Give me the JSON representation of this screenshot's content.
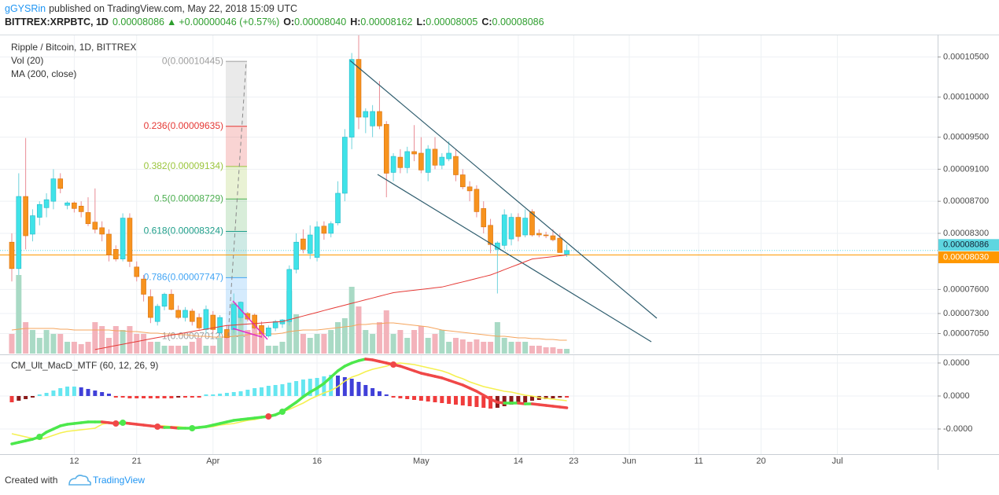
{
  "header": {
    "author": "gGYSRin",
    "published": "published on TradingView.com, May 22, 2018 15:09 UTC",
    "symbol": "BITTREX:XRPBTC, 1D",
    "last": "0.00008086",
    "arrow": "▲",
    "change": "+0.00000046 (+0.57%)",
    "ohlc": [
      {
        "key": "O:",
        "value": "0.00008040"
      },
      {
        "key": "H:",
        "value": "0.00008162"
      },
      {
        "key": "L:",
        "value": "0.00008005"
      },
      {
        "key": "C:",
        "value": "0.00008086"
      }
    ]
  },
  "footer": {
    "created": "Created with",
    "brand": "TradingView"
  },
  "chart_data": {
    "type": "candlestick",
    "xlim": [
      -1.7,
      133.45
    ],
    "xticks": [
      {
        "value": 9,
        "label": "12"
      },
      {
        "value": 18,
        "label": "21"
      },
      {
        "value": 29,
        "label": "Apr"
      },
      {
        "value": 44,
        "label": "16"
      },
      {
        "value": 59,
        "label": "May"
      },
      {
        "value": 73,
        "label": "14"
      },
      {
        "value": 81,
        "label": "23"
      },
      {
        "value": 89,
        "label": "Jun"
      },
      {
        "value": 99,
        "label": "11"
      },
      {
        "value": 108,
        "label": "20"
      },
      {
        "value": 119,
        "label": "Jul"
      }
    ],
    "ylim": [
      6.8e-05,
      0.0001077
    ],
    "yticks": [
      {
        "value": 0.000105,
        "label": "0.00010500"
      },
      {
        "value": 0.0001,
        "label": "0.00010000"
      },
      {
        "value": 9.5e-05,
        "label": "0.00009500"
      },
      {
        "value": 9.1e-05,
        "label": "0.00009100"
      },
      {
        "value": 8.7e-05,
        "label": "0.00008700"
      },
      {
        "value": 8.3e-05,
        "label": "0.00008300"
      },
      {
        "value": 7.6e-05,
        "label": "0.00007600"
      },
      {
        "value": 7.3e-05,
        "label": "0.00007300"
      },
      {
        "value": 7.05e-05,
        "label": "0.00007050"
      }
    ],
    "grid": true,
    "ohlc": {
      "name": "Ripple / Bitcoin, 1D, BITTREX",
      "up_color": "#3fe3e8",
      "down_color": "#f7931e",
      "open": [
        8.19e-05,
        7.86e-05,
        8.76e-05,
        8.29e-05,
        8.5e-05,
        8.62e-05,
        8.7e-05,
        8.98e-05,
        8.65e-05,
        8.68e-05,
        8.64e-05,
        8.56e-05,
        8.44e-05,
        8.37e-05,
        8.29e-05,
        8.1e-05,
        7.98e-05,
        8.49e-05,
        7.88e-05,
        7.73e-05,
        7.51e-05,
        7.2e-05,
        7.39e-05,
        7.54e-05,
        7.34e-05,
        7.25e-05,
        7.33e-05,
        7.25e-05,
        7.1e-05,
        7.28e-05,
        7.06e-05,
        7.1e-05,
        7.1e-05,
        7.25e-05,
        7.3e-05,
        7.28e-05,
        7.15e-05,
        7.02e-05,
        7.12e-05,
        7.17e-05,
        7.2e-05,
        7.85e-05,
        8.23e-05,
        8.05e-05,
        8e-05,
        8.39e-05,
        8.3e-05,
        8.43e-05,
        8.8e-05,
        9.5e-05,
        0.0001047,
        9.75e-05,
        9.64e-05,
        9.82e-05,
        9.66e-05,
        9.06e-05,
        9.25e-05,
        9.12e-05,
        9.32e-05,
        9.3e-05,
        9.06e-05,
        9.35e-05,
        9.15e-05,
        9.23e-05,
        9.26e-05,
        9.03e-05,
        8.88e-05,
        8.85e-05,
        8.61e-05,
        8.4e-05,
        8.1e-05,
        8.15e-05,
        8.23e-05,
        8.5e-05,
        8.28e-05,
        8.57e-05,
        8.3e-05,
        8.28e-05,
        8.27e-05,
        8.24e-05,
        8.04e-05
      ],
      "high": [
        8.3e-05,
        9.05e-05,
        9.49e-05,
        8.6e-05,
        8.7e-05,
        8.8e-05,
        9.1e-05,
        9.05e-05,
        8.7e-05,
        8.7e-05,
        8.7e-05,
        8.75e-05,
        8.86e-05,
        8.45e-05,
        8.35e-05,
        8.15e-05,
        8.55e-05,
        8.55e-05,
        7.95e-05,
        7.78e-05,
        7.6e-05,
        7.42e-05,
        7.56e-05,
        7.6e-05,
        7.4e-05,
        7.38e-05,
        7.36e-05,
        7.3e-05,
        7.4e-05,
        7.33e-05,
        7.28e-05,
        7.15e-05,
        7.55e-05,
        7.45e-05,
        7.32e-05,
        7.3e-05,
        7.2e-05,
        7.15e-05,
        7.22e-05,
        7.23e-05,
        7.9e-05,
        8.3e-05,
        8.35e-05,
        8.4e-05,
        8.45e-05,
        8.45e-05,
        8.45e-05,
        8.95e-05,
        9.6e-05,
        0.0001055,
        0.0001077,
        9.86e-05,
        9.9e-05,
        0.000102,
        9.7e-05,
        9.3e-05,
        9.35e-05,
        9.38e-05,
        9.65e-05,
        9.5e-05,
        9.4e-05,
        9.5e-05,
        9.3e-05,
        9.45e-05,
        9.35e-05,
        9.1e-05,
        8.95e-05,
        8.9e-05,
        8.7e-05,
        8.48e-05,
        8.2e-05,
        8.6e-05,
        8.55e-05,
        8.55e-05,
        8.6e-05,
        8.6e-05,
        8.35e-05,
        8.32e-05,
        8.35e-05,
        8.3e-05,
        8.162e-05
      ],
      "low": [
        7.7e-05,
        7.78e-05,
        8.1e-05,
        8.2e-05,
        8.4e-05,
        8.5e-05,
        8.6e-05,
        8.8e-05,
        8.6e-05,
        8.56e-05,
        8.5e-05,
        8.39e-05,
        8.3e-05,
        8.2e-05,
        7.95e-05,
        7.95e-05,
        7.95e-05,
        7.88e-05,
        7.7e-05,
        7.45e-05,
        7.18e-05,
        7.15e-05,
        7.34e-05,
        7.34e-05,
        7.23e-05,
        7.2e-05,
        7.15e-05,
        7.1e-05,
        7.05e-05,
        7.05e-05,
        7e-05,
        6.98e-05,
        7.05e-05,
        7.2e-05,
        7.2e-05,
        7.1e-05,
        7e-05,
        7e-05,
        7.08e-05,
        7.12e-05,
        7.15e-05,
        7.8e-05,
        8.05e-05,
        7.98e-05,
        7.95e-05,
        8.22e-05,
        8.25e-05,
        8.4e-05,
        8.7e-05,
        9.35e-05,
        9.6e-05,
        9.55e-05,
        9.5e-05,
        9.6e-05,
        8.75e-05,
        8.95e-05,
        9.05e-05,
        9.05e-05,
        9.2e-05,
        9.05e-05,
        8.95e-05,
        9.1e-05,
        9.1e-05,
        9.2e-05,
        8.95e-05,
        8.85e-05,
        8.7e-05,
        8.5e-05,
        8.3e-05,
        8.05e-05,
        7.55e-05,
        8.1e-05,
        8.15e-05,
        8.2e-05,
        8.25e-05,
        8.26e-05,
        8.25e-05,
        8.24e-05,
        8.2e-05,
        8.06e-05,
        8.005e-05
      ],
      "close": [
        7.86e-05,
        8.76e-05,
        8.27e-05,
        8.52e-05,
        8.66e-05,
        8.72e-05,
        8.98e-05,
        8.86e-05,
        8.68e-05,
        8.61e-05,
        8.57e-05,
        8.42e-05,
        8.35e-05,
        8.29e-05,
        8.03e-05,
        7.98e-05,
        8.49e-05,
        7.95e-05,
        7.76e-05,
        7.54e-05,
        7.25e-05,
        7.39e-05,
        7.54e-05,
        7.35e-05,
        7.25e-05,
        7.34e-05,
        7.2e-05,
        7.12e-05,
        7.35e-05,
        7.1e-05,
        7.25e-05,
        7e-05,
        7.41e-05,
        7.44e-05,
        7.23e-05,
        7.12e-05,
        7.05e-05,
        7.12e-05,
        7.2e-05,
        7.22e-05,
        7.85e-05,
        8.19e-05,
        8.1e-05,
        8.28e-05,
        8.38e-05,
        8.3e-05,
        8.42e-05,
        8.8e-05,
        9.5e-05,
        0.0001047,
        9.75e-05,
        9.82e-05,
        9.82e-05,
        9.64e-05,
        9.05e-05,
        9.26e-05,
        9.12e-05,
        9.32e-05,
        9.29e-05,
        9.09e-05,
        9.35e-05,
        9.15e-05,
        9.25e-05,
        9.3e-05,
        9.03e-05,
        8.88e-05,
        8.83e-05,
        8.57e-05,
        8.38e-05,
        8.16e-05,
        8.18e-05,
        8.53e-05,
        8.5e-05,
        8.26e-05,
        8.49e-05,
        8.28e-05,
        8.28e-05,
        8.27e-05,
        8.22e-05,
        8.06e-05,
        8.086e-05
      ]
    },
    "volume": {
      "name": "Vol (20)",
      "up_color": "#a9dac5",
      "down_color": "#f3b3bb",
      "ma_color": "#f5a45c",
      "values": [
        25,
        100,
        40,
        30,
        20,
        30,
        25,
        25,
        15,
        15,
        12,
        15,
        40,
        35,
        20,
        35,
        30,
        35,
        25,
        25,
        15,
        15,
        10,
        10,
        10,
        10,
        15,
        20,
        10,
        10,
        20,
        25,
        65,
        50,
        30,
        35,
        25,
        10,
        10,
        15,
        80,
        50,
        25,
        20,
        25,
        25,
        30,
        40,
        45,
        85,
        60,
        30,
        25,
        40,
        55,
        25,
        30,
        20,
        30,
        35,
        20,
        25,
        30,
        15,
        20,
        18,
        15,
        18,
        15,
        15,
        40,
        20,
        15,
        15,
        15,
        10,
        10,
        8,
        8,
        6,
        6
      ],
      "ma": [
        30,
        31,
        32,
        32,
        32,
        32,
        32,
        31,
        31,
        30,
        30,
        30,
        30,
        30,
        30,
        29,
        29,
        28,
        28,
        27,
        26,
        26,
        25,
        25,
        24,
        24,
        23,
        22,
        22,
        21,
        21,
        21,
        22,
        23,
        24,
        25,
        25,
        25,
        25,
        26,
        28,
        29,
        30,
        30,
        30,
        31,
        32,
        33,
        34,
        35,
        37,
        37,
        38,
        38,
        39,
        39,
        38,
        37,
        36,
        35,
        34,
        32,
        30,
        29,
        28,
        27,
        26,
        25,
        24,
        23,
        22,
        22,
        21,
        20,
        20,
        19,
        19,
        18,
        18,
        17,
        17
      ]
    },
    "ma": {
      "name": "MA (200, close)",
      "color": "#e53935",
      "values": [
        null,
        null,
        null,
        null,
        null,
        null,
        null,
        null,
        null,
        null,
        null,
        null,
        6.85e-05,
        6.867e-05,
        6.883e-05,
        6.9e-05,
        6.917e-05,
        6.933e-05,
        6.95e-05,
        6.967e-05,
        6.983e-05,
        7e-05,
        7.015e-05,
        7.03e-05,
        7.045e-05,
        7.06e-05,
        7.075e-05,
        7.09e-05,
        7.105e-05,
        7.12e-05,
        7.135e-05,
        7.15e-05,
        7.156e-05,
        7.163e-05,
        7.169e-05,
        7.175e-05,
        7.181e-05,
        7.188e-05,
        7.194e-05,
        7.2e-05,
        7.223e-05,
        7.246e-05,
        7.269e-05,
        7.291e-05,
        7.314e-05,
        7.337e-05,
        7.36e-05,
        7.382e-05,
        7.404e-05,
        7.427e-05,
        7.449e-05,
        7.471e-05,
        7.493e-05,
        7.516e-05,
        7.538e-05,
        7.56e-05,
        7.57e-05,
        7.58e-05,
        7.59e-05,
        7.6e-05,
        7.61e-05,
        7.62e-05,
        7.63e-05,
        7.651e-05,
        7.673e-05,
        7.694e-05,
        7.716e-05,
        7.737e-05,
        7.759e-05,
        7.78e-05,
        7.813e-05,
        7.847e-05,
        7.88e-05,
        7.913e-05,
        7.947e-05,
        7.98e-05,
        7.99e-05,
        8e-05,
        8.01e-05,
        8.02e-05,
        8.03e-05
      ]
    },
    "last_price": {
      "value": 8.086e-05,
      "label": "0.00008086",
      "color": "#5ed6e0"
    },
    "ma_price": {
      "value": 8.03e-05,
      "label": "0.00008030",
      "color": "#ff9800"
    },
    "fib": {
      "levels": [
        {
          "value": 0.00010445,
          "label": "0(0.00010445)",
          "color": "#9e9e9e"
        },
        {
          "value": 9.635e-05,
          "label": "0.236(0.00009635)",
          "color": "#e53935"
        },
        {
          "value": 9.134e-05,
          "label": "0.382(0.00009134)",
          "color": "#9bc53d"
        },
        {
          "value": 8.729e-05,
          "label": "0.5(0.00008729)",
          "color": "#4caf50"
        },
        {
          "value": 8.324e-05,
          "label": "0.618(0.00008324)",
          "color": "#1f9e8a"
        },
        {
          "value": 7.747e-05,
          "label": "0.786(0.00007747)",
          "color": "#42a5f5"
        },
        {
          "value": 7.012e-05,
          "label": "1(0.00007012)",
          "color": "#9e9e9e"
        }
      ]
    },
    "macd": {
      "name": "CM_Ult_MacD_MTF (60, 12, 26, 9)",
      "ylim": [
        -3.7e-06,
        2.6e-06
      ],
      "yticks": [
        {
          "value": 2.1e-06,
          "label": "0.0000"
        },
        {
          "value": 0,
          "label": "0.0000"
        },
        {
          "value": -2.1e-06,
          "label": "-0.0000"
        }
      ],
      "up_color": "#4ce84c",
      "down_color": "#f04848",
      "signal_color": "#f5f050",
      "hist_colors": [
        "#66e6f0",
        "#4040d8",
        "#f03c3c",
        "#8b1a1a"
      ],
      "macd": [
        -3.05e-06,
        -2.95e-06,
        -2.85e-06,
        -2.75e-06,
        -2.6e-06,
        -2.3e-06,
        -2.1e-06,
        -1.9e-06,
        -1.8e-06,
        -1.75e-06,
        -1.7e-06,
        -1.65e-06,
        -1.65e-06,
        -1.65e-06,
        -1.7e-06,
        -1.75e-06,
        -1.7e-06,
        -1.75e-06,
        -1.8e-06,
        -1.85e-06,
        -1.9e-06,
        -1.95e-06,
        -2e-06,
        -2e-06,
        -2.05e-06,
        -2.05e-06,
        -2.05e-06,
        -2e-06,
        -1.95e-06,
        -1.85e-06,
        -1.75e-06,
        -1.65e-06,
        -1.55e-06,
        -1.5e-06,
        -1.45e-06,
        -1.4e-06,
        -1.35e-06,
        -1.3e-06,
        -1.2e-06,
        -1e-06,
        -7e-07,
        -4e-07,
        -5e-08,
        2.5e-07,
        5e-07,
        8e-07,
        1.2e-06,
        1.6e-06,
        1.9e-06,
        2.1e-06,
        2.25e-06,
        2.35e-06,
        2.3e-06,
        2.2e-06,
        2.1e-06,
        2e-06,
        1.9e-06,
        1.75e-06,
        1.6e-06,
        1.45e-06,
        1.35e-06,
        1.25e-06,
        1.15e-06,
        1e-06,
        8.5e-07,
        7e-07,
        5e-07,
        3e-07,
        5e-08,
        -2e-07,
        -4e-07,
        -4.5e-07,
        -4.5e-07,
        -4.5e-07,
        -5e-07,
        -5e-07,
        -5.5e-07,
        -6e-07,
        -6.5e-07,
        -7e-07,
        -7.5e-07
      ],
      "signal": [
        -2.4e-06,
        -2.5e-06,
        -2.6e-06,
        -2.7e-06,
        -2.75e-06,
        -2.65e-06,
        -2.5e-06,
        -2.35e-06,
        -2.25e-06,
        -2.2e-06,
        -2.15e-06,
        -2.1e-06,
        -2.05e-06,
        -1.8e-06,
        -1.72e-06,
        -1.7e-06,
        -1.72e-06,
        -1.75e-06,
        -1.8e-06,
        -1.85e-06,
        -1.9e-06,
        -1.9e-06,
        -1.9e-06,
        -1.95e-06,
        -1.95e-06,
        -2e-06,
        -2.05e-06,
        -2e-06,
        -2e-06,
        -1.95e-06,
        -1.85e-06,
        -1.8e-06,
        -1.75e-06,
        -1.65e-06,
        -1.55e-06,
        -1.5e-06,
        -1.4e-06,
        -1.25e-06,
        -1.15e-06,
        -1e-06,
        -8.5e-07,
        -6.5e-07,
        -4.5e-07,
        -2e-07,
        0,
        2e-07,
        3.5e-07,
        6e-07,
        9.5e-07,
        1.2e-06,
        1.35e-06,
        1.55e-06,
        1.7e-06,
        1.8e-06,
        1.9e-06,
        2.05e-06,
        2.1e-06,
        2.05e-06,
        2e-06,
        1.9e-06,
        1.8e-06,
        1.7e-06,
        1.6e-06,
        1.45e-06,
        1.25e-06,
        1.1e-06,
        9e-07,
        7.5e-07,
        6e-07,
        5e-07,
        4e-07,
        3e-07,
        2.5e-07,
        1.5e-07,
        5e-08,
        0,
        -1e-07,
        -1.5e-07,
        -2e-07,
        -2.5e-07,
        -3e-07
      ],
      "histogram": [
        -4e-07,
        -3e-07,
        -2e-07,
        -1e-07,
        1e-07,
        2e-07,
        3.5e-07,
        5e-07,
        6e-07,
        6e-07,
        5.5e-07,
        4.5e-07,
        3.5e-07,
        2.5e-07,
        1.5e-07,
        -1e-07,
        -1e-07,
        -1.5e-07,
        -1.5e-07,
        -1.5e-07,
        -1.5e-07,
        -1.5e-07,
        -1.5e-07,
        -1.5e-07,
        -1e-07,
        -1e-07,
        -1e-07,
        -1e-07,
        1e-07,
        1e-07,
        1.5e-07,
        2e-07,
        2.5e-07,
        3e-07,
        4e-07,
        5e-07,
        5.5e-07,
        6.5e-07,
        7e-07,
        7.5e-07,
        8.5e-07,
        9.5e-07,
        1.05e-06,
        1.1e-06,
        1.15e-06,
        1.25e-06,
        1.35e-06,
        1.3e-06,
        1.2e-06,
        1.1e-06,
        9e-07,
        7e-07,
        5e-07,
        3e-07,
        1e-07,
        -1e-07,
        -1.5e-07,
        -2e-07,
        -2.5e-07,
        -3e-07,
        -3.5e-07,
        -4e-07,
        -4.5e-07,
        -5e-07,
        -5.5e-07,
        -6e-07,
        -6.5e-07,
        -7e-07,
        -7.5e-07,
        -8e-07,
        -7.5e-07,
        -6.5e-07,
        -5.5e-07,
        -4.5e-07,
        -4e-07,
        -3e-07,
        -2.5e-07,
        -2e-07,
        -1.5e-07,
        -1e-07,
        -1e-07
      ]
    }
  }
}
